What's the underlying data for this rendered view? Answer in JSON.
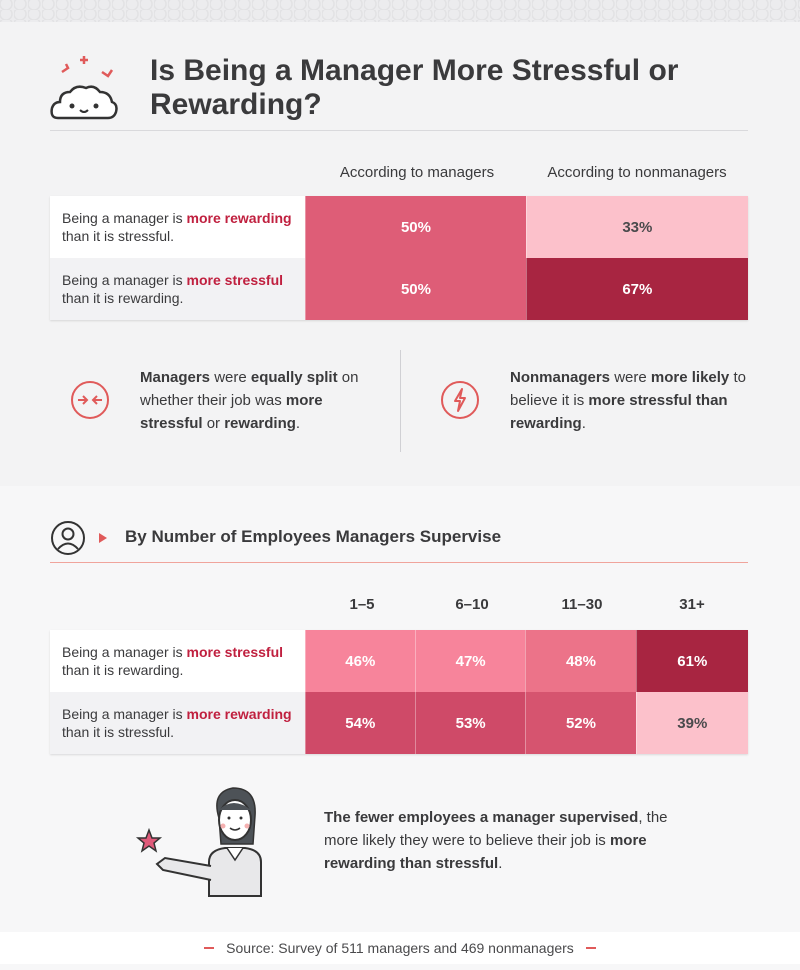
{
  "title": "Is Being a Manager More Stressful or Rewarding?",
  "colors": {
    "light_pink": "#fcc1cb",
    "pink": "#f7849b",
    "mid": "#de5d77",
    "deep": "#cf4a68",
    "dark": "#a82541",
    "accent": "#c0203f"
  },
  "table1": {
    "columns": [
      "According to managers",
      "According to nonmanagers"
    ],
    "rows": [
      {
        "prefix": "Being a manager is ",
        "highlight": "more rewarding",
        "suffix": " than it is stressful.",
        "values": [
          "50%",
          "33%"
        ]
      },
      {
        "prefix": "Being a manager is ",
        "highlight": "more stressful",
        "suffix": " than it is rewarding.",
        "values": [
          "50%",
          "67%"
        ]
      }
    ]
  },
  "insights": [
    {
      "icon": "arrows-converge-icon",
      "parts": [
        {
          "t": "Managers",
          "b": true
        },
        {
          "t": " were ",
          "b": false
        },
        {
          "t": "equally split",
          "b": true
        },
        {
          "t": " on whether their job was ",
          "b": false
        },
        {
          "t": "more stressful",
          "b": true
        },
        {
          "t": " or ",
          "b": false
        },
        {
          "t": "rewarding",
          "b": true
        },
        {
          "t": ".",
          "b": false
        }
      ]
    },
    {
      "icon": "lightning-icon",
      "parts": [
        {
          "t": "Nonmanagers",
          "b": true
        },
        {
          "t": " were ",
          "b": false
        },
        {
          "t": "more likely",
          "b": true
        },
        {
          "t": " to believe it is ",
          "b": false
        },
        {
          "t": "more stressful than rewarding",
          "b": true
        },
        {
          "t": ".",
          "b": false
        }
      ]
    }
  ],
  "section2_title": "By Number of Employees Managers Supervise",
  "table2": {
    "columns": [
      "1–5",
      "6–10",
      "11–30",
      "31+"
    ],
    "rows": [
      {
        "prefix": "Being a manager is ",
        "highlight": "more stressful",
        "suffix": " than it is rewarding.",
        "values": [
          "46%",
          "47%",
          "48%",
          "61%"
        ]
      },
      {
        "prefix": "Being a manager is ",
        "highlight": "more rewarding",
        "suffix": " than it is stressful.",
        "values": [
          "54%",
          "53%",
          "52%",
          "39%"
        ]
      }
    ]
  },
  "story_parts": [
    {
      "t": "The fewer employees a manager supervised",
      "b": true
    },
    {
      "t": ", the more likely they were to believe their job is ",
      "b": false
    },
    {
      "t": "more rewarding than stressful",
      "b": true
    },
    {
      "t": ".",
      "b": false
    }
  ],
  "footer": "Source: Survey of 511 managers and 469 nonmanagers",
  "chart_data": [
    {
      "type": "table",
      "columns": [
        "According to managers",
        "According to nonmanagers"
      ],
      "rows": [
        "Being a manager is more rewarding than it is stressful.",
        "Being a manager is more stressful than it is rewarding."
      ],
      "values": [
        [
          50,
          33
        ],
        [
          50,
          67
        ]
      ],
      "unit": "%"
    },
    {
      "type": "table",
      "title": "By Number of Employees Managers Supervise",
      "columns": [
        "1–5",
        "6–10",
        "11–30",
        "31+"
      ],
      "rows": [
        "Being a manager is more stressful than it is rewarding.",
        "Being a manager is more rewarding than it is stressful."
      ],
      "values": [
        [
          46,
          47,
          48,
          61
        ],
        [
          54,
          53,
          52,
          39
        ]
      ],
      "unit": "%"
    }
  ]
}
